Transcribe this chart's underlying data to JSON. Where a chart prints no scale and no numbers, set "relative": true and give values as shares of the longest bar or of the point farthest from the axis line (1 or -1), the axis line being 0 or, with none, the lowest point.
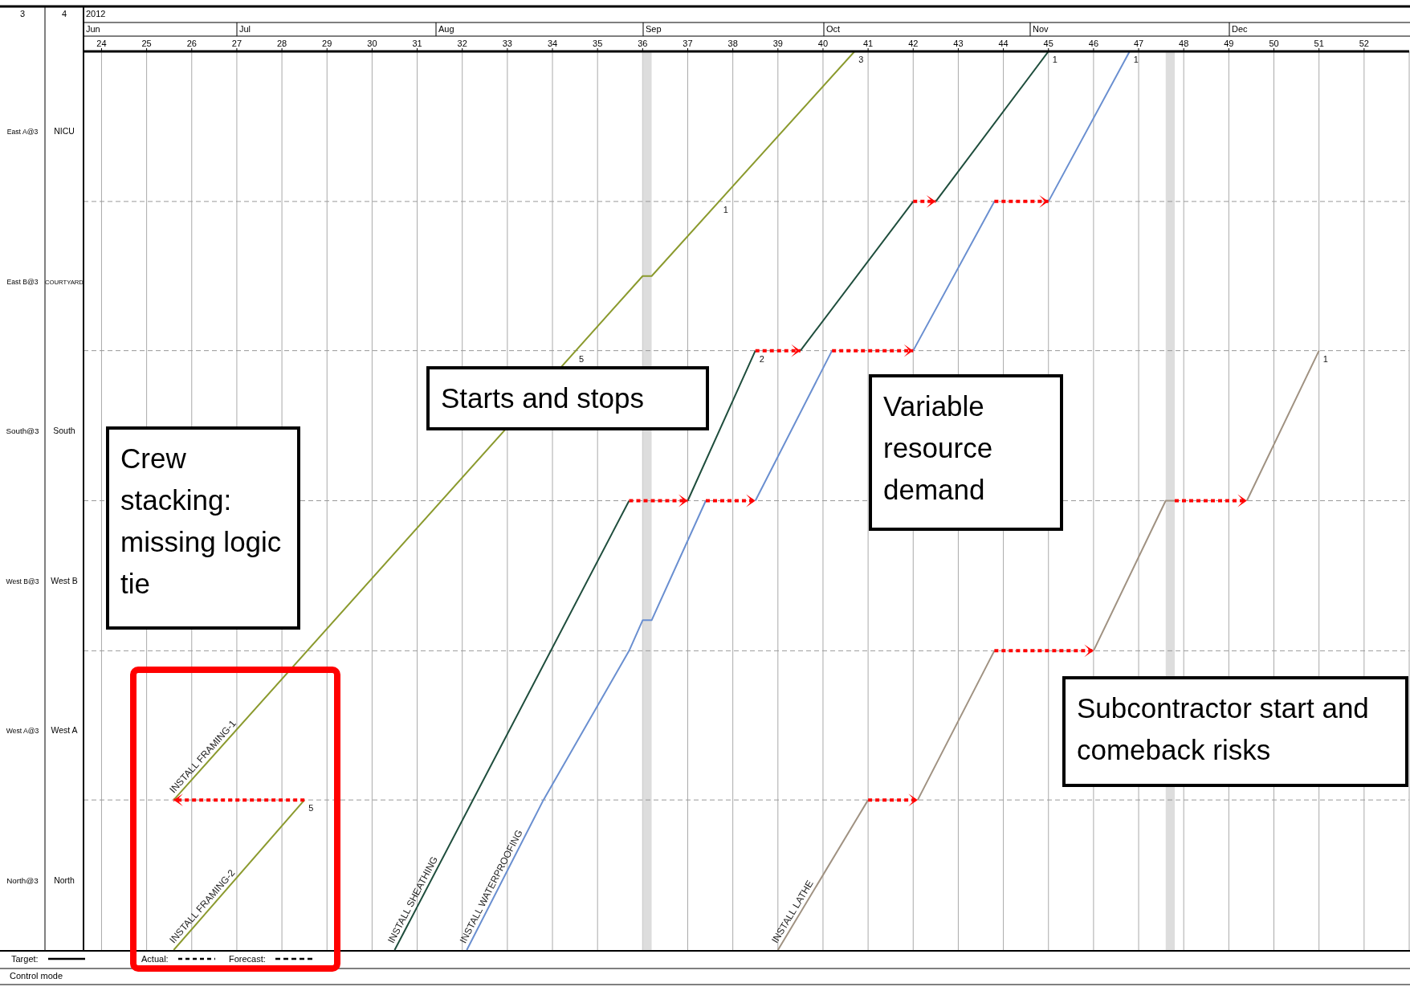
{
  "chart_data": {
    "type": "line",
    "relative": true,
    "line_style": "solid",
    "grid": "x",
    "xlim": [
      23.6,
      53
    ],
    "xticks": [
      24,
      25,
      26,
      27,
      28,
      29,
      30,
      31,
      32,
      33,
      34,
      35,
      36,
      37,
      38,
      39,
      40,
      41,
      42,
      43,
      44,
      45,
      46,
      47,
      48,
      49,
      50,
      51,
      52
    ],
    "ref_lines": [
      {
        "axis": "y",
        "value": 0.167,
        "line_style": "dashed",
        "color": "#999999"
      },
      {
        "axis": "y",
        "value": 0.333,
        "line_style": "dashed",
        "color": "#999999"
      },
      {
        "axis": "y",
        "value": 0.5,
        "line_style": "dashed",
        "color": "#999999"
      },
      {
        "axis": "y",
        "value": 0.667,
        "line_style": "dashed",
        "color": "#999999"
      },
      {
        "axis": "y",
        "value": 0.833,
        "line_style": "dashed",
        "color": "#999999"
      }
    ],
    "bands": [
      {
        "axis": "x",
        "from": 36.0,
        "to": 36.2,
        "color": "#dddddd"
      },
      {
        "axis": "x",
        "from": 47.6,
        "to": 47.8,
        "color": "#dddddd"
      }
    ],
    "series": [
      {
        "color": "#8b9a2e",
        "x": [
          25.6,
          28.5
        ],
        "values": [
          0,
          0.167
        ]
      },
      {
        "color": "#8b9a2e",
        "x": [
          25.6,
          36.0,
          36.2,
          40.7
        ],
        "values": [
          0.167,
          0.75,
          0.75,
          1
        ]
      },
      {
        "color": "#1f4e3d",
        "x": [
          30.5,
          35.7,
          null,
          37.0,
          38.5,
          null,
          39.5,
          42.0,
          null,
          42.5,
          45.0
        ],
        "values": [
          0,
          0.5,
          null,
          0.5,
          0.667,
          null,
          0.667,
          0.833,
          null,
          0.833,
          1
        ]
      },
      {
        "color": "#6a8fd0",
        "x": [
          32.1,
          33.8,
          35.7,
          36.0,
          36.2,
          37.4,
          null,
          38.5,
          40.2,
          null,
          42.0,
          43.8,
          null,
          45.0,
          46.8
        ],
        "values": [
          0,
          0.167,
          0.333,
          0.367,
          0.367,
          0.5,
          null,
          0.5,
          0.667,
          null,
          0.667,
          0.833,
          null,
          0.833,
          1
        ]
      },
      {
        "color": "#a09282",
        "x": [
          39.0,
          41.0,
          null,
          42.1,
          43.8,
          null,
          46.0,
          47.6,
          47.8,
          null,
          49.4,
          51.0
        ],
        "values": [
          0,
          0.167,
          null,
          0.167,
          0.333,
          null,
          0.333,
          0.5,
          0.5,
          null,
          0.5,
          0.667
        ]
      },
      {
        "color": "#ff0000",
        "line_style": "dotted",
        "x": [
          35.7,
          37.0,
          null,
          37.4,
          38.5,
          null,
          38.5,
          39.5,
          null,
          40.2,
          42.0,
          null,
          42.0,
          42.5,
          null,
          43.8,
          45.0,
          null,
          28.5,
          25.6,
          null,
          41.0,
          42.1,
          null,
          43.8,
          46.0,
          null,
          47.8,
          49.4
        ],
        "values": [
          0.5,
          0.5,
          null,
          0.5,
          0.5,
          null,
          0.667,
          0.667,
          null,
          0.667,
          0.667,
          null,
          0.833,
          0.833,
          null,
          0.833,
          0.833,
          null,
          0.167,
          0.167,
          null,
          0.167,
          0.167,
          null,
          0.333,
          0.333,
          null,
          0.5,
          0.5
        ]
      }
    ],
    "annotations": [
      "Crew stacking: missing logic tie",
      "Starts and stops",
      "Variable resource demand",
      "Subcontractor start and comeback risks",
      "2012",
      "3",
      "4",
      "Target:",
      "Actual:",
      "Forecast:",
      "Control mode",
      "North@3",
      "West A@3",
      "West B@3",
      "South@3",
      "East B@3",
      "East A@3",
      "North",
      "West A",
      "West B",
      "South",
      "COURTYARD",
      "NICU",
      "Jun",
      "Jul",
      "Aug",
      "Sep",
      "Oct",
      "Nov",
      "Dec",
      {
        "text": "INSTALL FRAMING-1",
        "x": 25.6,
        "y": 0.167
      },
      {
        "text": "INSTALL FRAMING-2",
        "x": 25.6,
        "y": 0
      },
      {
        "text": "INSTALL SHEATHING",
        "x": 30.5,
        "y": 0
      },
      {
        "text": "INSTALL WATERPROOFING",
        "x": 32.1,
        "y": 0
      },
      {
        "text": "INSTALL LATHE",
        "x": 39.0,
        "y": 0
      },
      {
        "text": "3",
        "x": 40.7,
        "y": 1
      },
      {
        "text": "1",
        "x": 37.7,
        "y": 0.833
      },
      {
        "text": "5",
        "x": 34.5,
        "y": 0.667
      },
      {
        "text": "2",
        "x": 38.5,
        "y": 0.667
      },
      {
        "text": "1",
        "x": 45.0,
        "y": 1
      },
      {
        "text": "1",
        "x": 46.8,
        "y": 1
      },
      {
        "text": "1",
        "x": 51.0,
        "y": 0.667
      },
      {
        "text": "5",
        "x": 28.5,
        "y": 0.167
      }
    ]
  }
}
